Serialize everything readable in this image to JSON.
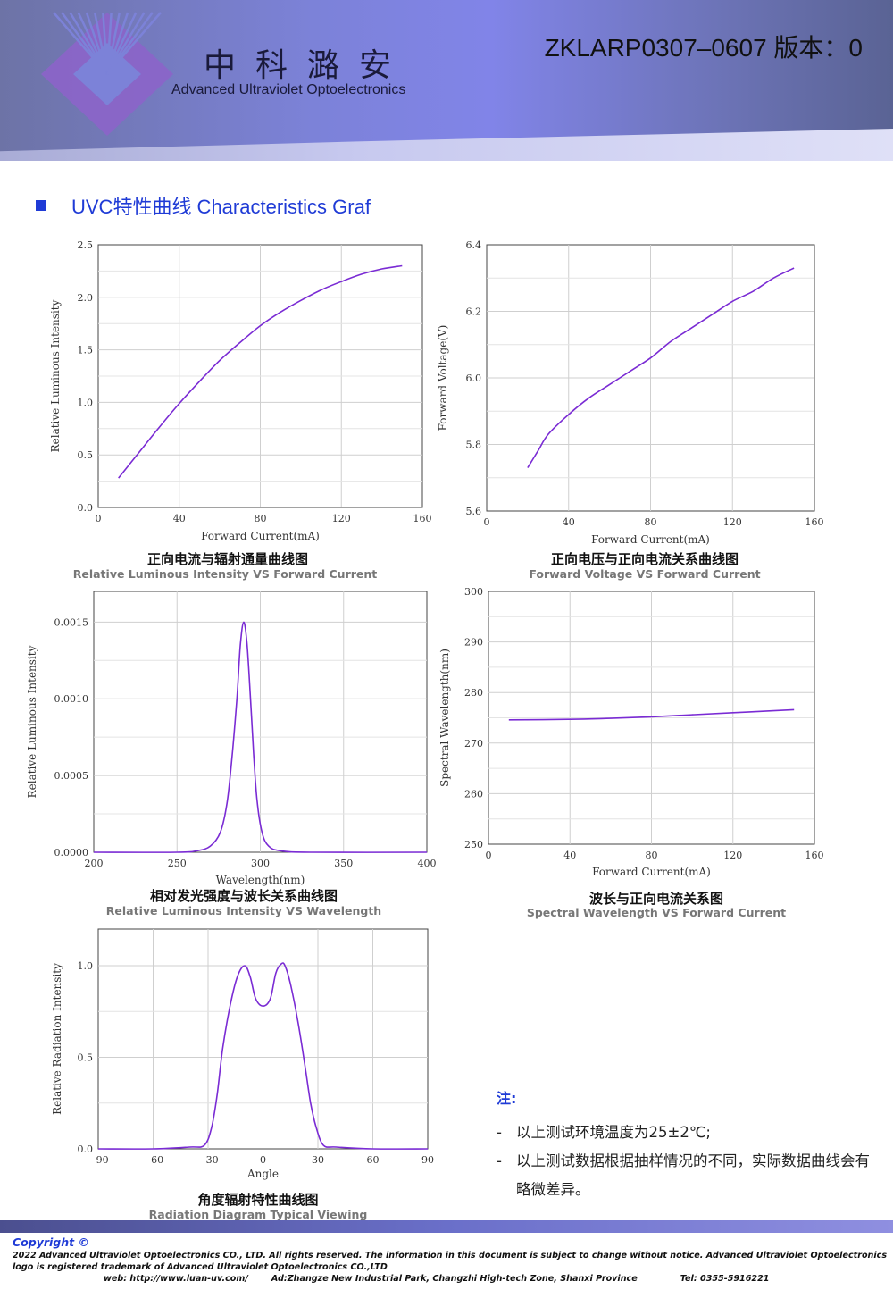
{
  "header": {
    "logo_cn": "中科潞安",
    "logo_en": "Advanced Ultraviolet Optoelectronics",
    "doc_code": "ZKLARP0307–0607 版本：0",
    "colors": {
      "banner": "#7c82d8",
      "logo": "#8a63c8"
    },
    "logo_icon": "diamond-ray-logo"
  },
  "section": {
    "title": "UVC特性曲线 Characteristics Graf",
    "bullet_icon": "square-bullet-icon",
    "color": "#1f3bd6"
  },
  "charts": [
    {
      "caption_cn": "正向电流与辐射通量曲线图",
      "caption_en": "Relative Luminous Intensity VS Forward Current",
      "chart_data": {
        "type": "line",
        "xlabel": "Forward Current(mA)",
        "ylabel": "Relative Luminous Intensity",
        "xlim": [
          0,
          160
        ],
        "ylim": [
          0,
          2.5
        ],
        "xticks": [
          "0",
          "40",
          "80",
          "120",
          "160"
        ],
        "yticks": [
          "0.0",
          "0.5",
          "1.0",
          "1.5",
          "2.0",
          "2.5"
        ],
        "grid": true,
        "line_color": "#7a2bd4",
        "series": [
          {
            "x": [
              10,
              20,
              30,
              40,
              50,
              60,
              70,
              80,
              90,
              100,
              110,
              120,
              130,
              140,
              150
            ],
            "y": [
              0.28,
              0.52,
              0.76,
              0.99,
              1.2,
              1.4,
              1.57,
              1.73,
              1.86,
              1.97,
              2.07,
              2.15,
              2.22,
              2.27,
              2.3
            ]
          }
        ]
      }
    },
    {
      "caption_cn": "正向电压与正向电流关系曲线图",
      "caption_en": "Forward Voltage VS Forward Current",
      "chart_data": {
        "type": "line",
        "xlabel": "Forward Current(mA)",
        "ylabel": "Forward Voltage(V)",
        "xlim": [
          0,
          160
        ],
        "ylim": [
          5.6,
          6.4
        ],
        "xticks": [
          "0",
          "40",
          "80",
          "120",
          "160"
        ],
        "yticks": [
          "5.6",
          "5.8",
          "6.0",
          "6.2",
          "6.4"
        ],
        "grid": true,
        "line_color": "#7a2bd4",
        "series": [
          {
            "x": [
              20,
              25,
              30,
              40,
              50,
              60,
              70,
              80,
              90,
              100,
              110,
              120,
              130,
              140,
              150
            ],
            "y": [
              5.73,
              5.78,
              5.83,
              5.89,
              5.94,
              5.98,
              6.02,
              6.06,
              6.11,
              6.15,
              6.19,
              6.23,
              6.26,
              6.3,
              6.33
            ]
          }
        ]
      }
    },
    {
      "caption_cn": "相对发光强度与波长关系曲线图",
      "caption_en": "Relative Luminous Intensity VS Wavelength",
      "chart_data": {
        "type": "line",
        "xlabel": "Wavelength(nm)",
        "ylabel": "Relative Luminous Intensity",
        "xlim": [
          200,
          400
        ],
        "ylim": [
          0,
          0.0017
        ],
        "xticks": [
          "200",
          "250",
          "300",
          "350",
          "400"
        ],
        "yticks": [
          "0.0000",
          "0.0005",
          "0.0010",
          "0.0015"
        ],
        "ytick_values": [
          0,
          0.0005,
          0.001,
          0.0015
        ],
        "grid": true,
        "line_color": "#7a2bd4",
        "series": [
          {
            "x": [
              200,
              250,
              262,
              270,
              276,
              280,
              283,
              286,
              288,
              290,
              292,
              294,
              296,
              298,
              301,
              305,
              312,
              330,
              400
            ],
            "y": [
              0,
              0,
              1e-05,
              4e-05,
              0.00013,
              0.00032,
              0.00062,
              0.00101,
              0.00135,
              0.0015,
              0.00136,
              0.00102,
              0.00064,
              0.00034,
              0.00013,
              4e-05,
              1e-05,
              0,
              0
            ]
          }
        ]
      }
    },
    {
      "caption_cn": "波长与正向电流关系图",
      "caption_en": "Spectral Wavelength VS Forward Current",
      "chart_data": {
        "type": "line",
        "xlabel": "Forward Current(mA)",
        "ylabel": "Spectral Wavelength(nm)",
        "xlim": [
          0,
          160
        ],
        "ylim": [
          250,
          300
        ],
        "xticks": [
          "0",
          "40",
          "80",
          "120",
          "160"
        ],
        "yticks": [
          "250",
          "260",
          "270",
          "280",
          "290",
          "300"
        ],
        "grid": true,
        "line_color": "#7a2bd4",
        "series": [
          {
            "x": [
              10,
              40,
              60,
              80,
              100,
              120,
              140,
              150
            ],
            "y": [
              274.6,
              274.7,
              274.9,
              275.2,
              275.6,
              276.0,
              276.4,
              276.6
            ]
          }
        ]
      }
    },
    {
      "caption_cn": "角度辐射特性曲线图",
      "caption_en": "Radiation Diagram Typical Viewing",
      "chart_data": {
        "type": "line",
        "xlabel": "Angle",
        "ylabel": "Relative Radiation Intensity",
        "xlim": [
          -90,
          90
        ],
        "ylim": [
          0,
          1.2
        ],
        "xticks": [
          "−90",
          "−60",
          "−30",
          "0",
          "30",
          "60",
          "90"
        ],
        "yticks": [
          "0.0",
          "0.5",
          "1.0"
        ],
        "ytick_values": [
          0,
          0.5,
          1.0
        ],
        "grid": true,
        "line_color": "#7a2bd4",
        "series": [
          {
            "x": [
              -90,
              -60,
              -40,
              -32,
              -28,
              -25,
              -22,
              -18,
              -14,
              -10,
              -7,
              -4,
              0,
              4,
              7,
              10,
              12,
              15,
              19,
              23,
              26,
              29,
              33,
              40,
              60,
              90
            ],
            "y": [
              0,
              0,
              0.01,
              0.02,
              0.12,
              0.3,
              0.55,
              0.78,
              0.94,
              1.0,
              0.94,
              0.82,
              0.78,
              0.82,
              0.96,
              1.01,
              1.0,
              0.9,
              0.7,
              0.45,
              0.25,
              0.12,
              0.02,
              0.01,
              0,
              0
            ]
          }
        ]
      }
    }
  ],
  "notes": {
    "title": "注:",
    "items": [
      "以上测试环境温度为25±2℃;",
      "以上测试数据根据抽样情况的不同，实际数据曲线会有略微差异。"
    ]
  },
  "footer": {
    "copyright": "Copyright ©",
    "text": "2022 Advanced Ultraviolet Optoelectronics CO., LTD. All rights reserved. The information in this document is subject to change without notice. Advanced Ultraviolet Optoelectronics logo is registered trademark of Advanced Ultraviolet Optoelectronics CO.,LTD",
    "web": "web: http://www.luan-uv.com/",
    "address": "Ad:Zhangze New Industrial Park, Changzhi High-tech Zone, Shanxi Province",
    "tel": "Tel:  0355-5916221"
  }
}
